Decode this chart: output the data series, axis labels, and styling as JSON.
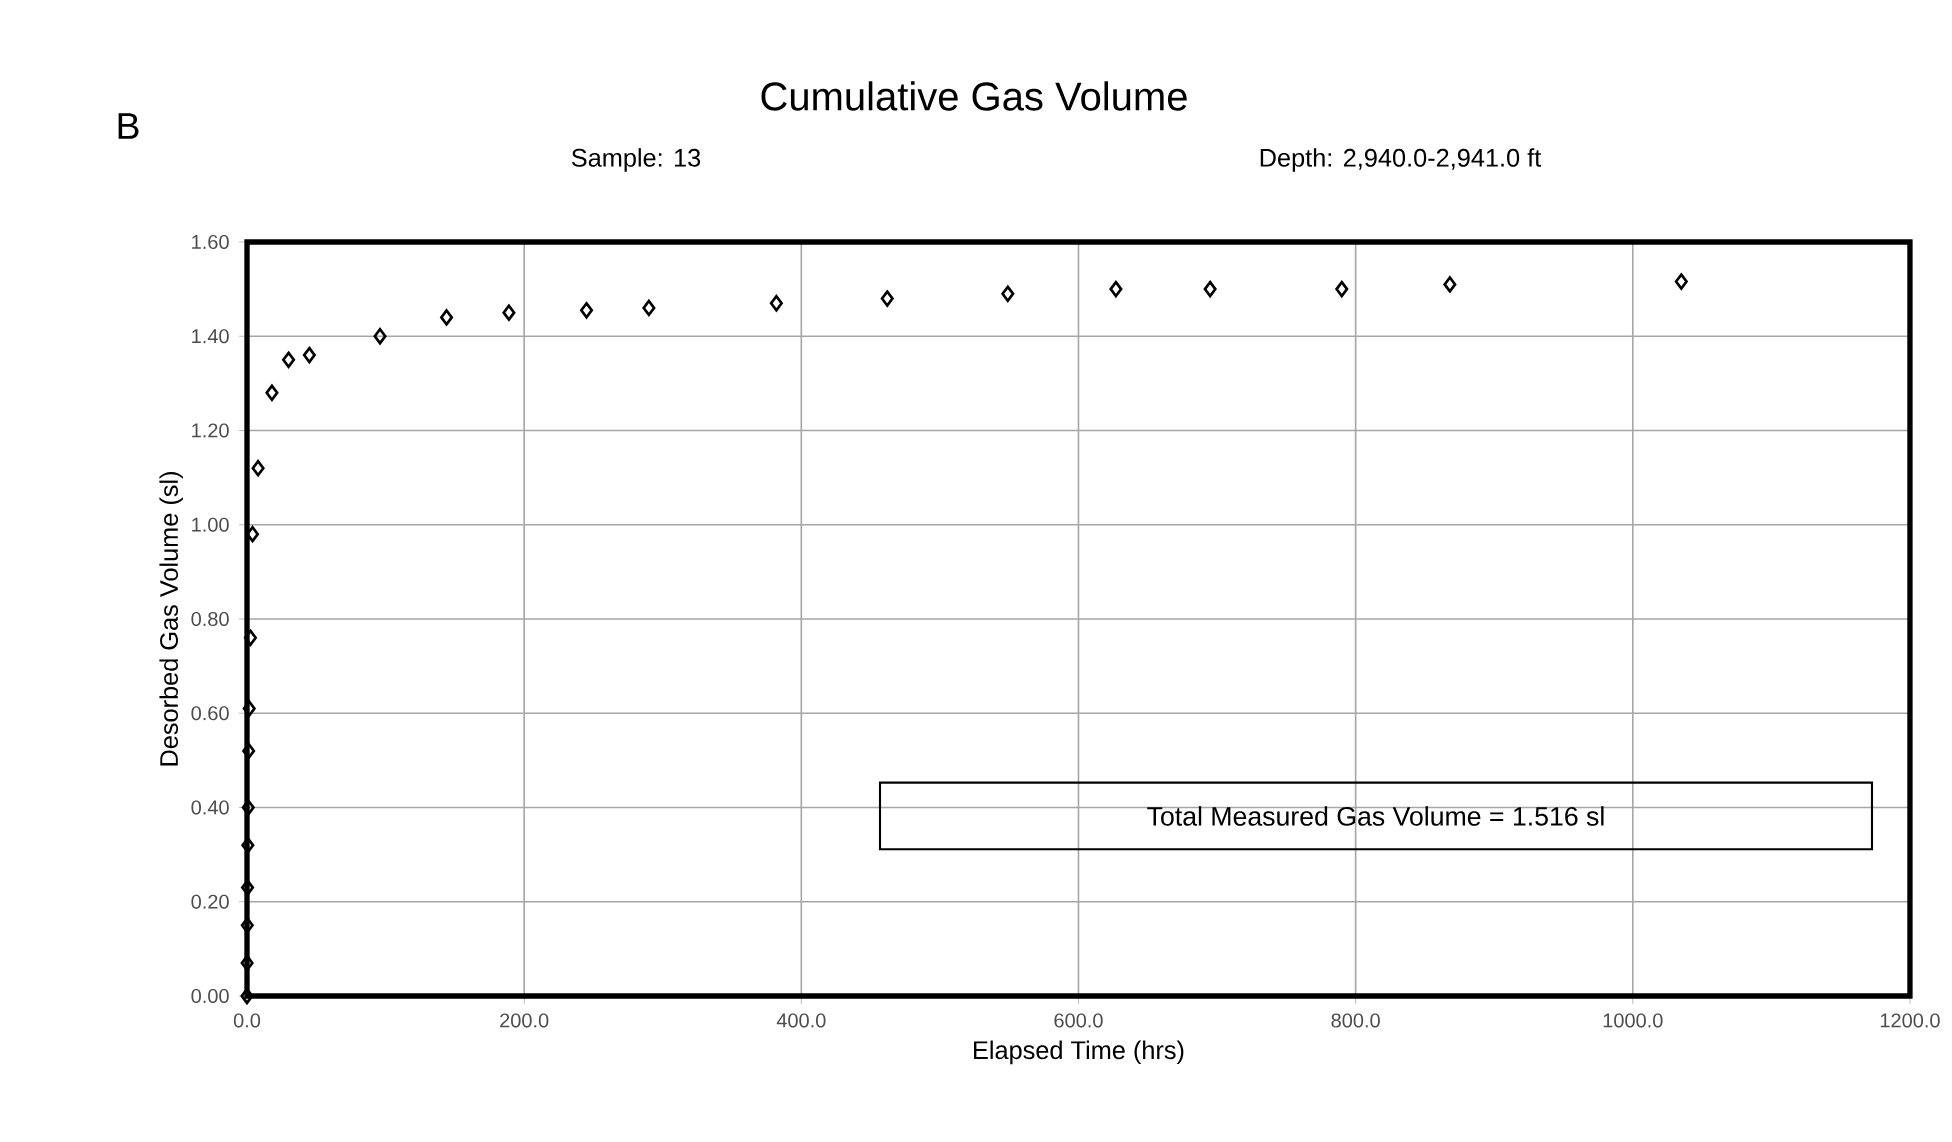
{
  "chart_data": {
    "type": "scatter",
    "title": "Cumulative Gas Volume",
    "subtitle": "Sample:  13",
    "xlabel": "Elapsed Time (hrs)",
    "ylabel": "Desorbed Gas Volume (sl)",
    "x": [
      0,
      0.1,
      0.2,
      0.4,
      0.6,
      0.9,
      1.2,
      1.6,
      2.5,
      4,
      8,
      18,
      30,
      45,
      96,
      144,
      189,
      245,
      290,
      382,
      462,
      549,
      627,
      695,
      790,
      868,
      1035
    ],
    "series": [
      {
        "color": "#000000",
        "values": [
          0,
          0.07,
          0.15,
          0.23,
          0.32,
          0.4,
          0.52,
          0.61,
          0.76,
          0.98,
          1.12,
          1.28,
          1.35,
          1.36,
          1.4,
          1.44,
          1.45,
          1.455,
          1.46,
          1.47,
          1.48,
          1.49,
          1.5,
          1.5,
          1.5,
          1.51,
          1.516
        ]
      }
    ],
    "xlim": [
      0,
      1200
    ],
    "xticks": [
      {
        "value": 0,
        "label": "0.0"
      },
      {
        "value": 200,
        "label": "200.0"
      },
      {
        "value": 400,
        "label": "400.0"
      },
      {
        "value": 600,
        "label": "600.0"
      },
      {
        "value": 800,
        "label": "800.0"
      },
      {
        "value": 1000,
        "label": "1000.0"
      },
      {
        "value": 1200,
        "label": "1200.0"
      }
    ],
    "ylim": [
      0,
      1.6
    ],
    "yticks": [
      {
        "value": 0,
        "label": "0.00"
      },
      {
        "value": 0.2,
        "label": "0.20"
      },
      {
        "value": 0.4,
        "label": "0.40"
      },
      {
        "value": 0.6,
        "label": "0.60"
      },
      {
        "value": 0.8,
        "label": "0.80"
      },
      {
        "value": 1.0,
        "label": "1.00"
      },
      {
        "value": 1.2,
        "label": "1.20"
      },
      {
        "value": 1.4,
        "label": "1.40"
      },
      {
        "value": 1.6,
        "label": "1.60"
      }
    ],
    "grid": true,
    "marker": "diamond",
    "annotations": [
      "B",
      "Depth: 2,940.0-2,941.0 ft",
      "Total Measured Gas Volume = 1.516 sl"
    ]
  }
}
